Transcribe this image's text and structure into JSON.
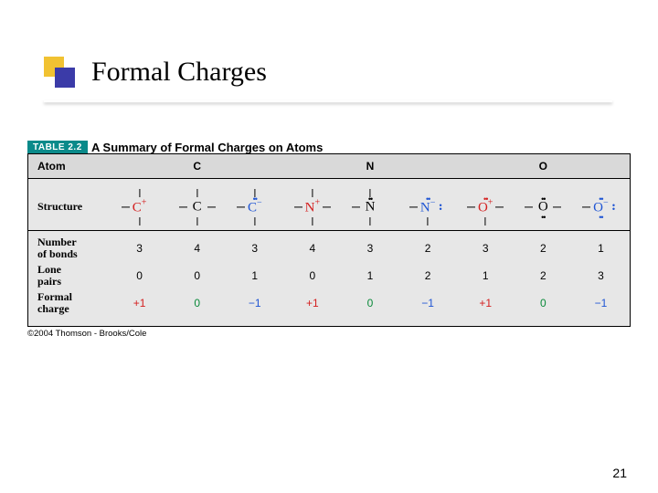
{
  "title": "Formal Charges",
  "page_number": "21",
  "copyright": "©2004 Thomson - Brooks/Cole",
  "table": {
    "tab_label": "TABLE 2.2",
    "caption": "A Summary of Formal Charges on Atoms",
    "header_atom": "Atom",
    "atoms": {
      "c": "C",
      "n": "N",
      "o": "O"
    },
    "row_labels": {
      "structure": "Structure",
      "bonds": "Number\nof bonds",
      "lone_pairs": "Lone\npairs",
      "formal": "Formal\ncharge"
    },
    "columns": [
      {
        "atom": "C",
        "struct": {
          "sym": "C",
          "sup": "+",
          "color": "#d41f1f",
          "bonds": [
            "l",
            "u",
            "d"
          ],
          "lone": []
        },
        "bonds": "3",
        "lp": "0",
        "fc": "+1",
        "fc_color": "#d41f1f"
      },
      {
        "atom": "C",
        "struct": {
          "sym": "C",
          "sup": "",
          "color": "#000000",
          "bonds": [
            "l",
            "r",
            "u",
            "d"
          ],
          "lone": []
        },
        "bonds": "4",
        "lp": "0",
        "fc": "0",
        "fc_color": "#0a8a3a"
      },
      {
        "atom": "C",
        "struct": {
          "sym": "C",
          "sup": "−",
          "color": "#1f55d4",
          "bonds": [
            "l",
            "u",
            "d"
          ],
          "lone": [
            "top"
          ]
        },
        "bonds": "3",
        "lp": "1",
        "fc": "−1",
        "fc_color": "#1f55d4"
      },
      {
        "atom": "N",
        "struct": {
          "sym": "N",
          "sup": "+",
          "color": "#d41f1f",
          "bonds": [
            "l",
            "r",
            "u",
            "d"
          ],
          "lone": []
        },
        "bonds": "4",
        "lp": "0",
        "fc": "+1",
        "fc_color": "#d41f1f"
      },
      {
        "atom": "N",
        "struct": {
          "sym": "N",
          "sup": "",
          "color": "#000000",
          "bonds": [
            "l",
            "u",
            "d"
          ],
          "lone": [
            "top"
          ]
        },
        "bonds": "3",
        "lp": "1",
        "fc": "0",
        "fc_color": "#0a8a3a"
      },
      {
        "atom": "N",
        "struct": {
          "sym": "N",
          "sup": "−",
          "color": "#1f55d4",
          "bonds": [
            "l",
            "d"
          ],
          "lone": [
            "top",
            "right"
          ]
        },
        "bonds": "2",
        "lp": "2",
        "fc": "−1",
        "fc_color": "#1f55d4"
      },
      {
        "atom": "O",
        "struct": {
          "sym": "O",
          "sup": "+",
          "color": "#d41f1f",
          "bonds": [
            "l",
            "r",
            "d"
          ],
          "lone": [
            "top"
          ]
        },
        "bonds": "3",
        "lp": "1",
        "fc": "+1",
        "fc_color": "#d41f1f"
      },
      {
        "atom": "O",
        "struct": {
          "sym": "O",
          "sup": "",
          "color": "#000000",
          "bonds": [
            "l",
            "r"
          ],
          "lone": [
            "top",
            "bot"
          ]
        },
        "bonds": "2",
        "lp": "2",
        "fc": "0",
        "fc_color": "#0a8a3a"
      },
      {
        "atom": "O",
        "struct": {
          "sym": "O",
          "sup": "−",
          "color": "#1f55d4",
          "bonds": [
            "l"
          ],
          "lone": [
            "top",
            "bot",
            "right"
          ]
        },
        "bonds": "1",
        "lp": "3",
        "fc": "−1",
        "fc_color": "#1f55d4"
      }
    ]
  },
  "colors": {
    "bullet_yellow": "#f1c232",
    "bullet_blue": "#3b3ba8",
    "table_bg": "#e7e7e7",
    "header_bg": "#d9d9d9",
    "teal": "#0a8a8a"
  }
}
